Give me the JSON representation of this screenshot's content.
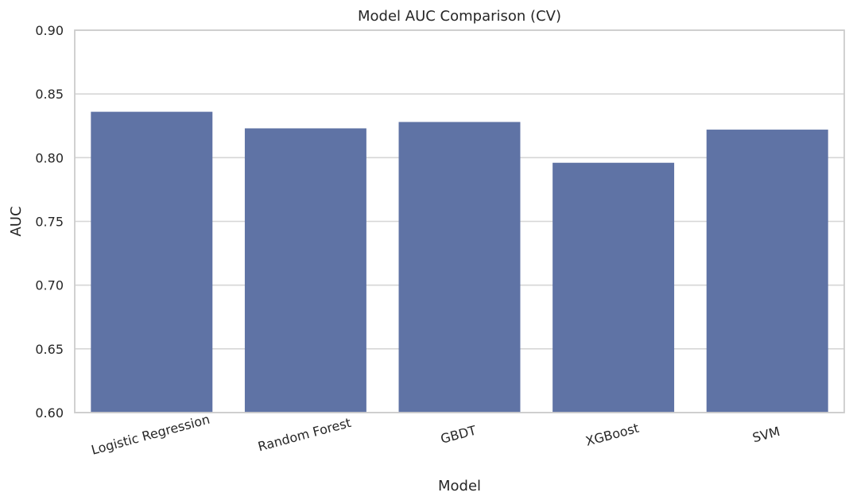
{
  "chart_data": {
    "type": "bar",
    "title": "Model AUC Comparison (CV)",
    "xlabel": "Model",
    "ylabel": "AUC",
    "categories": [
      "Logistic Regression",
      "Random Forest",
      "GBDT",
      "XGBoost",
      "SVM"
    ],
    "values": [
      0.836,
      0.823,
      0.828,
      0.796,
      0.822
    ],
    "ylim": [
      0.6,
      0.9
    ],
    "yticks": [
      "0.60",
      "0.65",
      "0.70",
      "0.75",
      "0.80",
      "0.85",
      "0.90"
    ],
    "ytick_values": [
      0.6,
      0.65,
      0.7,
      0.75,
      0.8,
      0.85,
      0.9
    ],
    "grid": "horizontal",
    "bar_color": "#5f73a5",
    "grid_color": "#d6d6d6",
    "frame_color": "#cccccc"
  }
}
